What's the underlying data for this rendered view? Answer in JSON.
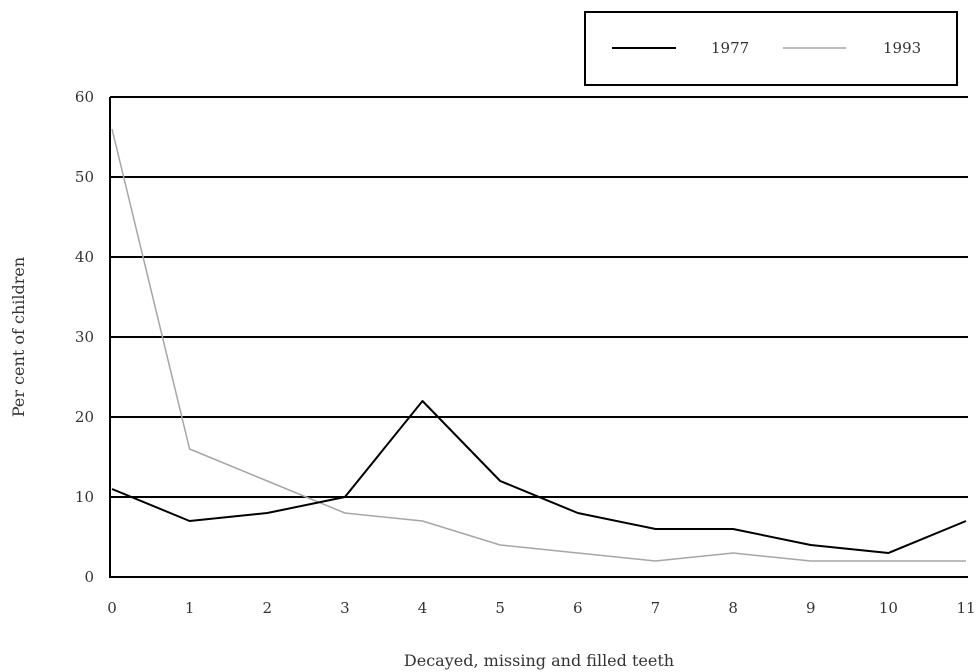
{
  "chart_data": {
    "type": "line",
    "title": "",
    "xlabel": "Decayed, missing and filled teeth",
    "ylabel": "Per cent of children",
    "x": [
      0,
      1,
      2,
      3,
      4,
      5,
      6,
      7,
      8,
      9,
      10,
      11
    ],
    "x_tick_labels": [
      "0",
      "1",
      "2",
      "3",
      "4",
      "5",
      "6",
      "7",
      "8",
      "9",
      "10",
      "11"
    ],
    "y_tick_labels": [
      "0",
      "10",
      "20",
      "30",
      "40",
      "50",
      "60"
    ],
    "ylim": [
      0,
      60
    ],
    "xlim": [
      0,
      11
    ],
    "grid": "horizontal",
    "legend_position": "top-right",
    "series": [
      {
        "name": "1977",
        "color": "#000000",
        "values": [
          11,
          7,
          8,
          10,
          22,
          12,
          8,
          6,
          6,
          4,
          3,
          7
        ]
      },
      {
        "name": "1993",
        "color": "#a6a6a6",
        "values": [
          56,
          16,
          12,
          8,
          7,
          4,
          3,
          2,
          3,
          2,
          2,
          2
        ]
      }
    ]
  }
}
